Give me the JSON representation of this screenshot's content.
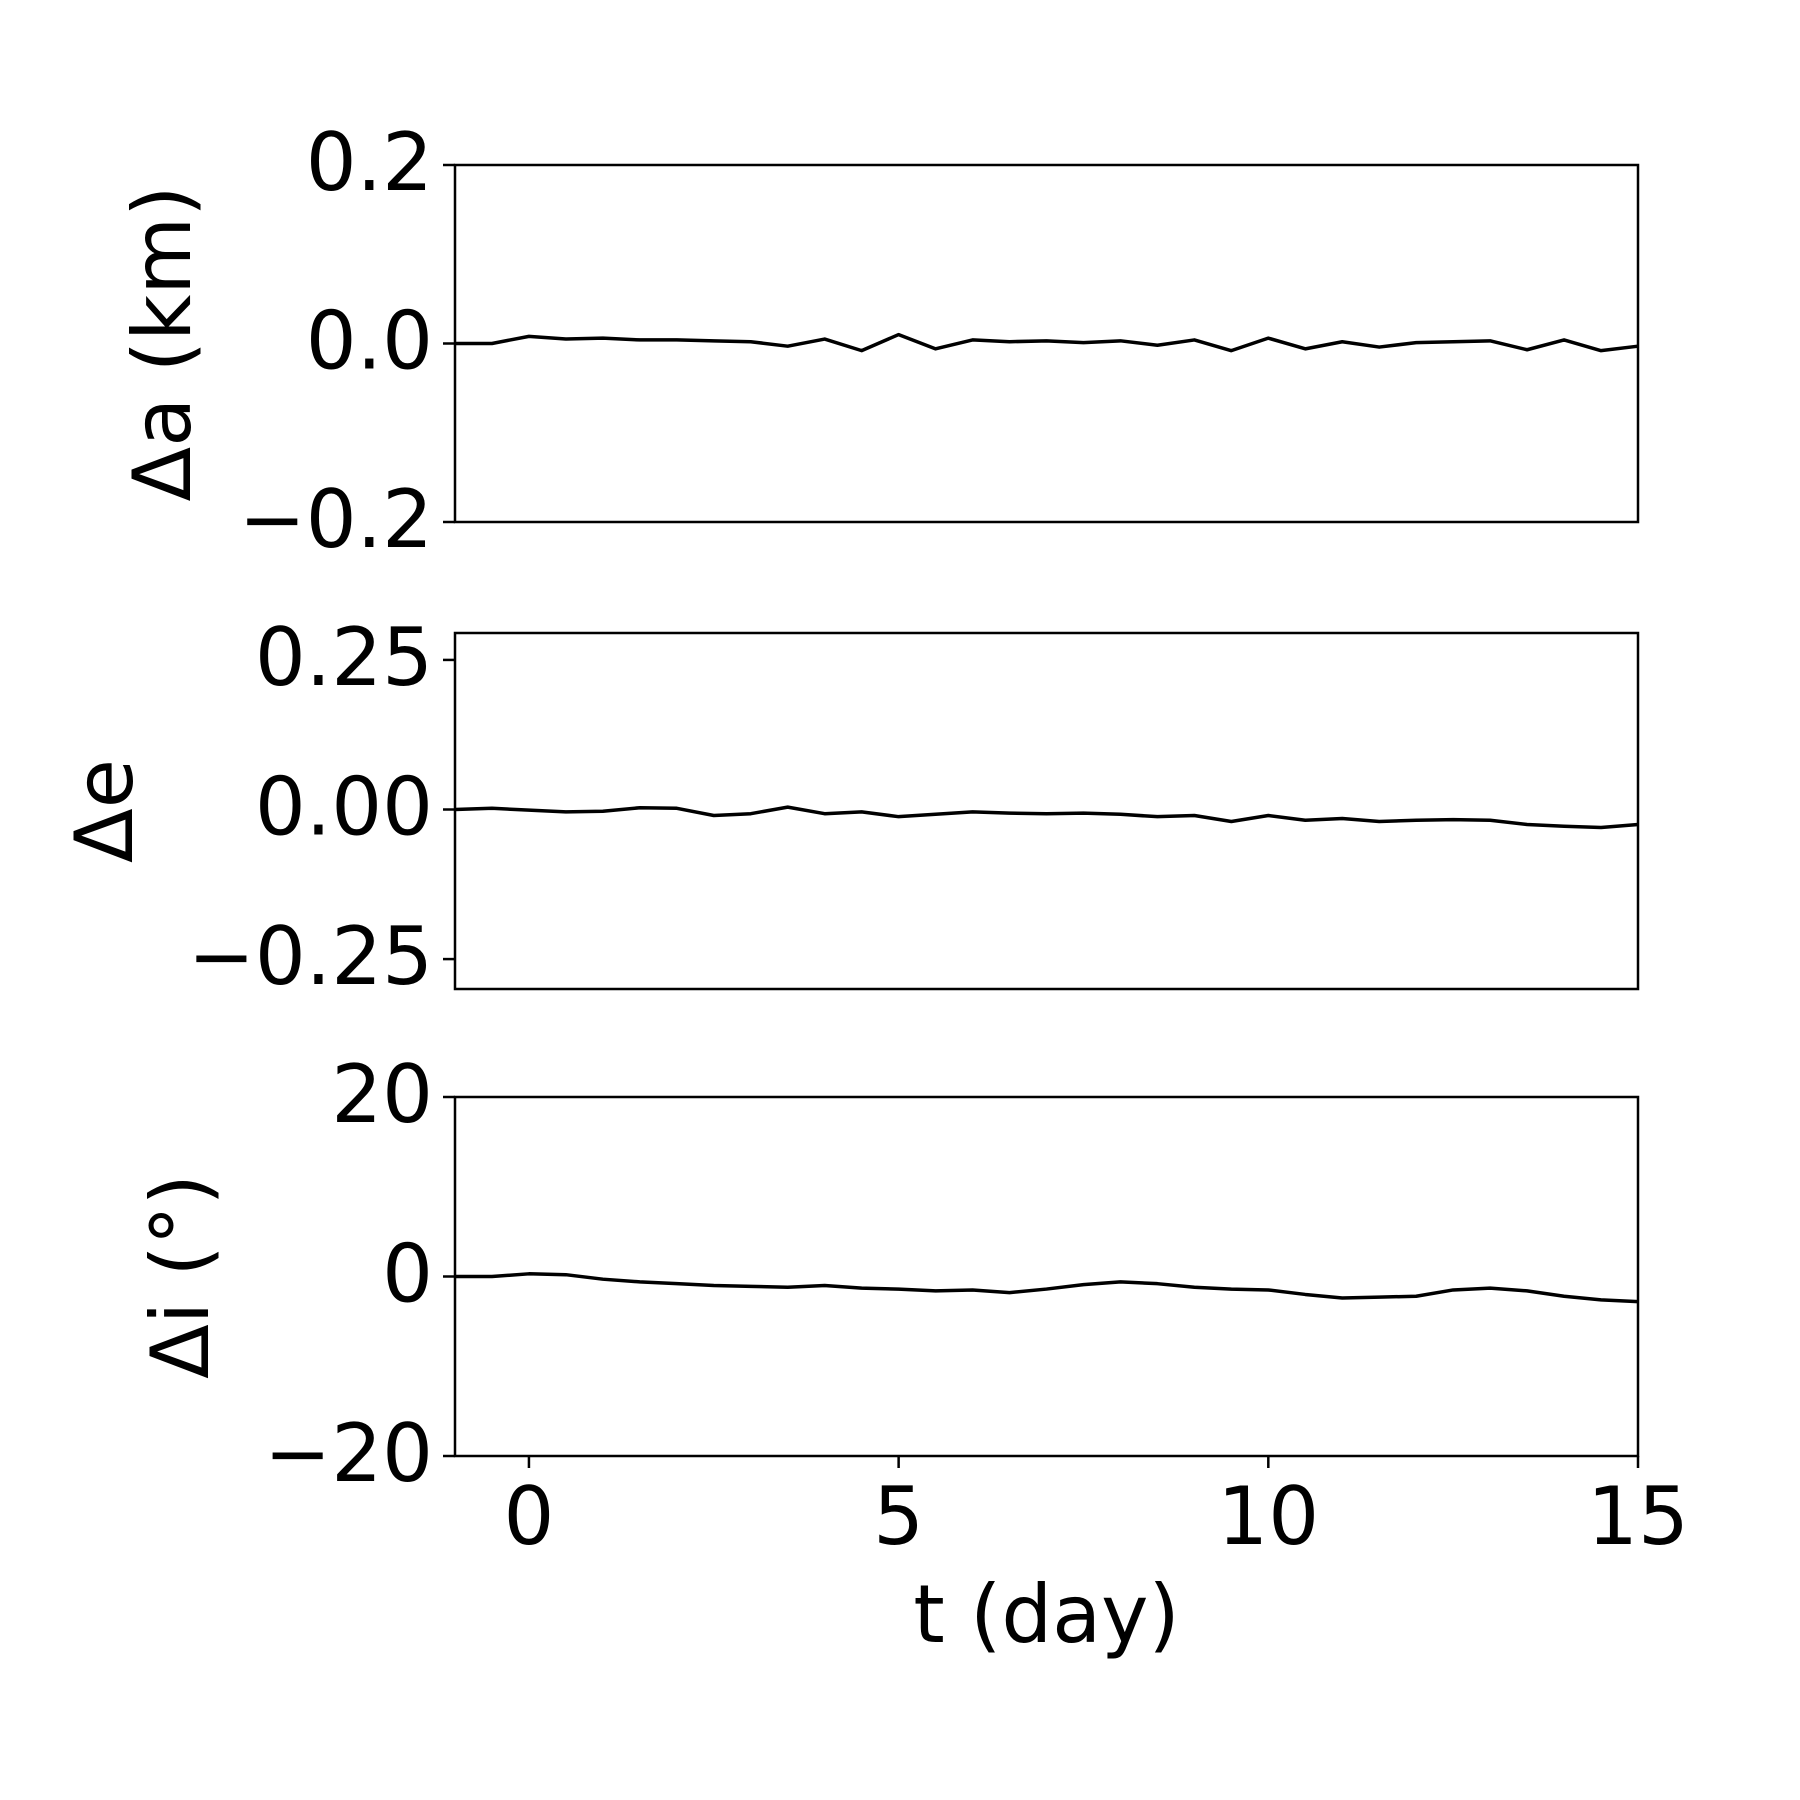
{
  "chart_data": [
    {
      "type": "line",
      "ylabel": "Δa (km)",
      "x": [
        -1,
        -0.5,
        0,
        0.5,
        1,
        1.5,
        2,
        2.5,
        3,
        3.5,
        4,
        4.5,
        5,
        5.5,
        6,
        6.5,
        7,
        7.5,
        8,
        8.5,
        9,
        9.5,
        10,
        10.5,
        11,
        11.5,
        12,
        12.5,
        13,
        13.5,
        14,
        14.5,
        15
      ],
      "series": [
        {
          "color": "#000000",
          "values": [
            0,
            0,
            0.008,
            0.005,
            0.006,
            0.004,
            0.004,
            0.003,
            0.002,
            -0.003,
            0.005,
            -0.008,
            0.01,
            -0.006,
            0.004,
            0.002,
            0.003,
            0.001,
            0.003,
            -0.002,
            0.004,
            -0.008,
            0.006,
            -0.006,
            0.002,
            -0.004,
            0.001,
            0.002,
            0.003,
            -0.007,
            0.004,
            -0.008,
            -0.003
          ]
        }
      ],
      "xlim": [
        -1,
        15
      ],
      "ylim": [
        -0.2,
        0.2
      ],
      "yticks": [
        {
          "value": -0.2,
          "label": "−0.2"
        },
        {
          "value": 0,
          "label": "0.0"
        },
        0.2
      ]
    },
    {
      "type": "line",
      "ylabel": "Δe",
      "x": [
        -1,
        -0.5,
        0,
        0.5,
        1,
        1.5,
        2,
        2.5,
        3,
        3.5,
        4,
        4.5,
        5,
        5.5,
        6,
        6.5,
        7,
        7.5,
        8,
        8.5,
        9,
        9.5,
        10,
        10.5,
        11,
        11.5,
        12,
        12.5,
        13,
        13.5,
        14,
        14.5,
        15
      ],
      "series": [
        {
          "color": "#000000",
          "values": [
            0,
            0.002,
            -0.001,
            -0.004,
            -0.003,
            0.003,
            0.002,
            -0.01,
            -0.007,
            0.004,
            -0.007,
            -0.004,
            -0.012,
            -0.008,
            -0.004,
            -0.006,
            -0.007,
            -0.006,
            -0.008,
            -0.012,
            -0.01,
            -0.02,
            -0.01,
            -0.018,
            -0.015,
            -0.02,
            -0.018,
            -0.017,
            -0.018,
            -0.025,
            -0.028,
            -0.03,
            -0.025
          ]
        }
      ],
      "xlim": [
        -1,
        15
      ],
      "ylim": [
        -0.3,
        0.295
      ],
      "yticks": [
        {
          "value": -0.25,
          "label": "−0.25"
        },
        {
          "value": 0,
          "label": "0.00"
        },
        0.25
      ]
    },
    {
      "type": "line",
      "ylabel": "Δi (°)",
      "xlabel": "t (day)",
      "x": [
        -1,
        -0.5,
        0,
        0.5,
        1,
        1.5,
        2,
        2.5,
        3,
        3.5,
        4,
        4.5,
        5,
        5.5,
        6,
        6.5,
        7,
        7.5,
        8,
        8.5,
        9,
        9.5,
        10,
        10.5,
        11,
        11.5,
        12,
        12.5,
        13,
        13.5,
        14,
        14.5,
        15
      ],
      "series": [
        {
          "color": "#000000",
          "values": [
            0,
            0,
            0.3,
            0.2,
            -0.3,
            -0.6,
            -0.8,
            -1.0,
            -1.1,
            -1.2,
            -1.0,
            -1.3,
            -1.4,
            -1.6,
            -1.5,
            -1.8,
            -1.4,
            -0.9,
            -0.6,
            -0.8,
            -1.2,
            -1.4,
            -1.5,
            -2.0,
            -2.4,
            -2.3,
            -2.2,
            -1.5,
            -1.3,
            -1.6,
            -2.2,
            -2.6,
            -2.8
          ]
        }
      ],
      "xlim": [
        -1,
        15
      ],
      "xticks": [
        0,
        5,
        10,
        15
      ],
      "ylim": [
        -20,
        20
      ],
      "yticks": [
        {
          "value": -20,
          "label": "−20"
        },
        0,
        20
      ]
    }
  ]
}
